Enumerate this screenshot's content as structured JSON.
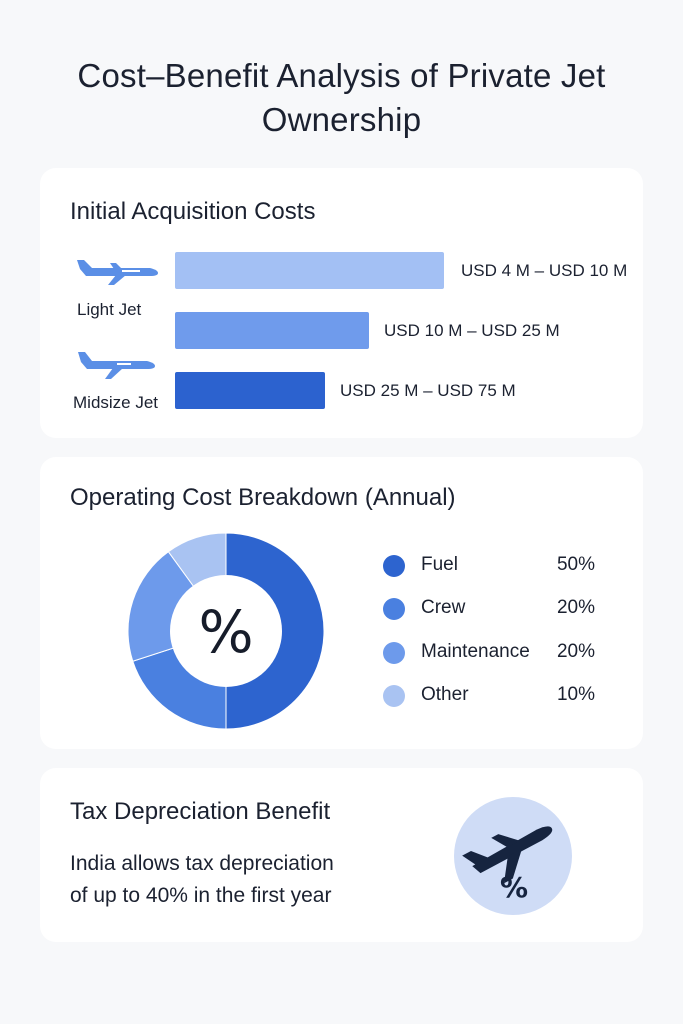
{
  "title": "Cost–Benefit Analysis of Private Jet Ownership",
  "acquisition": {
    "title": "Initial Acquisition Costs",
    "plane_labels": [
      "Light Jet",
      "Midsize Jet"
    ],
    "icons": [
      "airplane-icon",
      "airplane-icon"
    ],
    "ranges": [
      {
        "label": "USD 4 M – USD 10 M",
        "color": "#a3c0f4"
      },
      {
        "label": "USD 10 M – USD 25 M",
        "color": "#6f9bec"
      },
      {
        "label": "USD 25 M – USD 75 M",
        "color": "#2c62cf"
      }
    ]
  },
  "operating": {
    "title": "Operating Cost Breakdown (Annual)",
    "center_symbol": "%",
    "legend": [
      {
        "label": "Fuel",
        "value": "50%",
        "color": "#2d64cf"
      },
      {
        "label": "Crew",
        "value": "20%",
        "color": "#4a80e0"
      },
      {
        "label": "Maintenance",
        "value": "20%",
        "color": "#6d9aeb"
      },
      {
        "label": "Other",
        "value": "10%",
        "color": "#a9c3f2"
      }
    ]
  },
  "chart_data": {
    "type": "pie",
    "title": "Operating Cost Breakdown (Annual)",
    "categories": [
      "Fuel",
      "Crew",
      "Maintenance",
      "Other"
    ],
    "values": [
      50,
      20,
      20,
      10
    ],
    "unit": "%",
    "legend_position": "right"
  },
  "tax": {
    "title": "Tax Depreciation Benefit",
    "text_line1": "India allows tax depreciation",
    "text_line2": "of up to 40% in the first year",
    "badge_symbol": "%",
    "badge_icon": "airplane-percent-icon"
  }
}
